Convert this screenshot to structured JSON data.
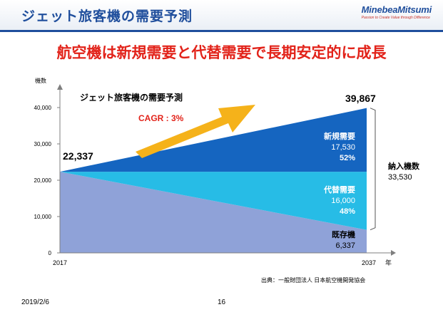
{
  "header": {
    "title": "ジェット旅客機の需要予測",
    "logo_name": "MinebeaMitsumi",
    "logo_tagline": "Passion to Create Value through Difference"
  },
  "headline": "航空機は新規需要と代替需要で長期安定的に成長",
  "footer": {
    "date": "2019/2/6",
    "page_number": "16"
  },
  "chart_data": {
    "type": "area",
    "title": "ジェット旅客機の需要予測",
    "ylabel": "機数",
    "xlabel": "年",
    "ylim": [
      0,
      45000
    ],
    "yticks": [
      0,
      10000,
      20000,
      30000,
      40000
    ],
    "ytick_labels": [
      "0",
      "10,000",
      "20,000",
      "30,000",
      "40,000"
    ],
    "x": [
      2017,
      2037
    ],
    "x_labels": [
      "2017",
      "2037"
    ],
    "start_value": 22337,
    "start_label": "22,337",
    "end_value": 39867,
    "end_label": "39,867",
    "growth_label": "CAGR : 3%",
    "series": [
      {
        "name": "既存機",
        "values": [
          22337,
          6337
        ],
        "value_label": "6,337",
        "percent_label": "",
        "color": "#8fa2d8"
      },
      {
        "name": "代替需要",
        "values": [
          0,
          16000
        ],
        "value_label": "16,000",
        "percent_label": "48%",
        "color": "#27bce6"
      },
      {
        "name": "新規需要",
        "values": [
          0,
          17530
        ],
        "value_label": "17,530",
        "percent_label": "52%",
        "color": "#1565c0"
      }
    ],
    "total": {
      "label": "納入機数",
      "value_label": "33,530"
    },
    "source": "出典：一般財団法人 日本航空機開発協会",
    "colors": {
      "arrow": "#f5b21a",
      "growth_text": "#e2231a",
      "axis": "#7f7f7f"
    }
  }
}
